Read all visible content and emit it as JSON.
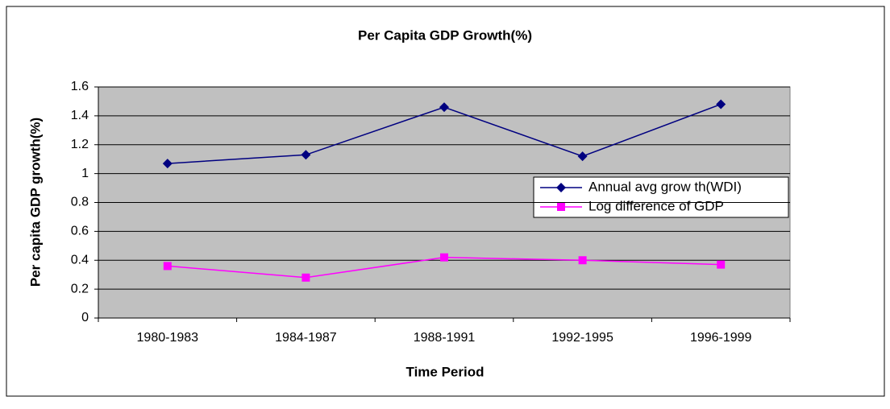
{
  "chart_data": {
    "type": "line",
    "title": "Per Capita GDP Growth(%)",
    "x_label": "Time Period",
    "y_label": "Per capita GDP growth(%)",
    "categories": [
      "1980-1983",
      "1984-1987",
      "1988-1991",
      "1992-1995",
      "1996-1999"
    ],
    "series": [
      {
        "name": "Annual avg grow th(WDI)",
        "color": "#000080",
        "marker": "diamond",
        "values": [
          1.07,
          1.13,
          1.46,
          1.12,
          1.48
        ]
      },
      {
        "name": "Log difference of GDP",
        "color": "#ff00ff",
        "marker": "square",
        "values": [
          0.36,
          0.28,
          0.42,
          0.4,
          0.37
        ]
      }
    ],
    "ylim": [
      0,
      1.6
    ],
    "yticks": [
      0,
      0.2,
      0.4,
      0.6,
      0.8,
      1,
      1.2,
      1.4,
      1.6
    ],
    "grid": true,
    "legend": "right"
  }
}
